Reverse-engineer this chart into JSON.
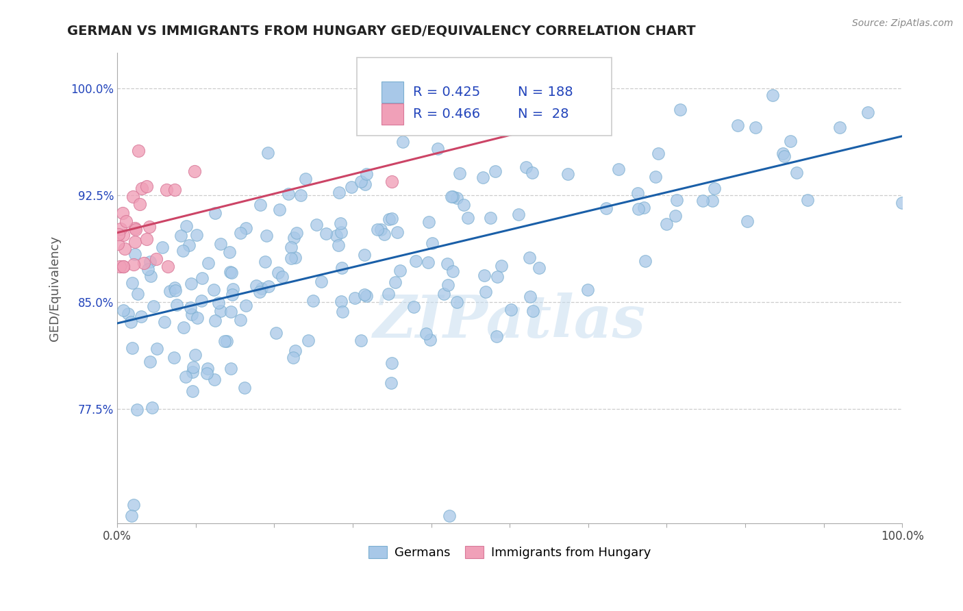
{
  "title": "GERMAN VS IMMIGRANTS FROM HUNGARY GED/EQUIVALENCY CORRELATION CHART",
  "source": "Source: ZipAtlas.com",
  "ylabel": "GED/Equivalency",
  "r_german": 0.425,
  "n_german": 188,
  "r_hungary": 0.466,
  "n_hungary": 28,
  "german_color": "#a8c8e8",
  "germany_edge_color": "#7aaed0",
  "hungary_color": "#f0a0b8",
  "hungary_edge_color": "#d87898",
  "german_line_color": "#1a5fa8",
  "hungary_line_color": "#cc4466",
  "watermark_color": "#c8ddf0",
  "legend_label_german": "Germans",
  "legend_label_hungary": "Immigrants from Hungary",
  "blue_text_color": "#2244bb",
  "title_color": "#222222",
  "xmin": 0.0,
  "xmax": 1.0,
  "ymin": 0.695,
  "ymax": 1.025,
  "ytick_positions": [
    0.775,
    0.85,
    0.925,
    1.0
  ],
  "ytick_labels": [
    "77.5%",
    "85.0%",
    "92.5%",
    "100.0%"
  ],
  "grid_color": "#cccccc",
  "spine_color": "#aaaaaa"
}
